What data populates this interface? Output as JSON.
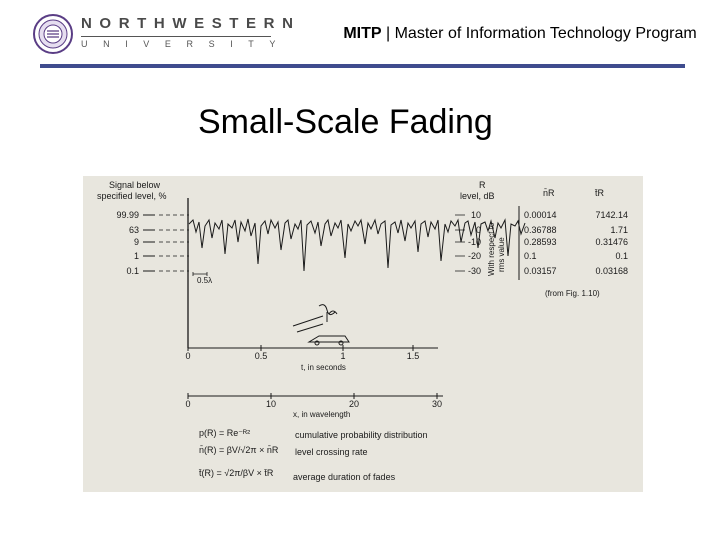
{
  "header": {
    "university_line1": "NORTHWESTERN",
    "university_line2": "UNIVERSITY",
    "program_bold": "MITP",
    "program_sep": " | ",
    "program_rest": "Master of Information Technology Program",
    "rule_color": "#3f4c8e"
  },
  "slide": {
    "title": "Small-Scale Fading"
  },
  "figure": {
    "signal_label_1": "Signal below",
    "signal_label_2": "specified level, %",
    "left_ticks": [
      "99.99",
      "63",
      "9",
      "1",
      "0.1"
    ],
    "r_label_1": "R",
    "r_label_2": "level, dB",
    "r_ticks": [
      "10",
      "0",
      "-10",
      "-20",
      "-30"
    ],
    "rms_label_1": "With respect to",
    "rms_label_2": "rms value",
    "col_n_header": "n̄R",
    "col_t_header": "t̄R",
    "table_n": [
      "0.00014",
      "0.36788",
      "0.28593",
      "0.1",
      "0.03157"
    ],
    "table_t": [
      "7142.14",
      "1.71",
      "0.31476",
      "0.1",
      "0.03168"
    ],
    "table_note": "(from Fig. 1.10)",
    "half_lambda": "0.5λ",
    "time_ticks": [
      "0",
      "0.5",
      "1",
      "1.5"
    ],
    "time_label": "t, in seconds",
    "dist_ticks": [
      "0",
      "10",
      "20",
      "30"
    ],
    "dist_label": "x, in wavelength",
    "eq1": "p(R) = Re⁻ᴿ²",
    "eq1_desc": "cumulative probability distribution",
    "eq2": "n̄(R) = βV/√2π × n̄R",
    "eq2_desc": "level crossing rate",
    "eq3": "t̄(R) = √2π/βV × t̄R",
    "eq3_desc": "average duration of fades"
  }
}
